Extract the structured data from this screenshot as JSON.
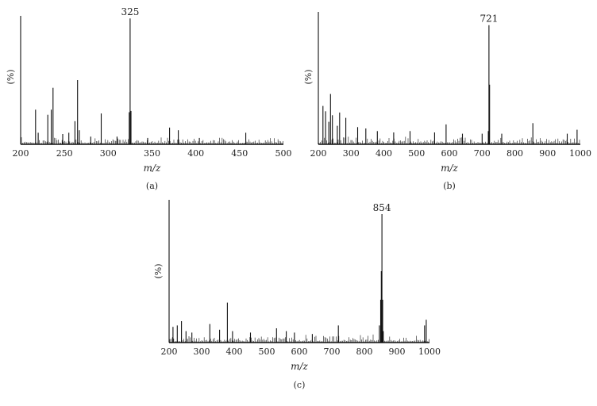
{
  "chart_data": [
    {
      "type": "bar",
      "panel_label": "(a)",
      "ylabel": "(%)",
      "xlabel": "m/z",
      "xlim": [
        200,
        500
      ],
      "ylim": [
        0,
        100
      ],
      "x_ticks": [
        200,
        250,
        300,
        350,
        400,
        450,
        500
      ],
      "peak_annotations": [
        {
          "text": "325",
          "x": 325
        }
      ],
      "x": [
        200,
        217,
        220,
        231,
        235,
        237,
        248,
        255,
        262,
        265,
        267,
        280,
        292,
        310,
        324,
        325,
        326,
        345,
        370,
        380,
        404,
        457
      ],
      "values": [
        100,
        27,
        9,
        23,
        27,
        44,
        8,
        9,
        18,
        50,
        11,
        6,
        24,
        6,
        25,
        98,
        26,
        5,
        13,
        11,
        5,
        9
      ]
    },
    {
      "type": "bar",
      "panel_label": "(b)",
      "ylabel": "(%)",
      "xlabel": "m/z",
      "xlim": [
        200,
        1000
      ],
      "ylim": [
        0,
        100
      ],
      "x_ticks": [
        200,
        300,
        400,
        500,
        600,
        700,
        800,
        900,
        1000
      ],
      "peak_annotations": [
        {
          "text": "721",
          "x": 721
        }
      ],
      "x": [
        200,
        214,
        222,
        232,
        237,
        243,
        258,
        265,
        284,
        320,
        345,
        380,
        430,
        480,
        555,
        590,
        640,
        700,
        719,
        721,
        723,
        760,
        855,
        960,
        990
      ],
      "values": [
        100,
        29,
        25,
        17,
        38,
        22,
        14,
        24,
        20,
        13,
        12,
        10,
        9,
        10,
        9,
        15,
        8,
        8,
        10,
        90,
        45,
        8,
        16,
        8,
        11
      ]
    },
    {
      "type": "bar",
      "panel_label": "(c)",
      "ylabel": "(%)",
      "xlabel": "m/z",
      "xlim": [
        200,
        1000
      ],
      "ylim": [
        0,
        100
      ],
      "x_ticks": [
        200,
        300,
        400,
        500,
        600,
        700,
        800,
        900,
        1000
      ],
      "peak_annotations": [
        {
          "text": "854",
          "x": 854
        }
      ],
      "x": [
        200,
        212,
        225,
        238,
        252,
        270,
        325,
        355,
        379,
        395,
        450,
        530,
        560,
        585,
        640,
        720,
        846,
        850,
        852,
        854,
        856,
        858,
        985,
        990
      ],
      "values": [
        100,
        11,
        12,
        15,
        8,
        7,
        13,
        9,
        28,
        8,
        7,
        10,
        8,
        7,
        6,
        12,
        12,
        30,
        50,
        90,
        30,
        8,
        12,
        16
      ]
    }
  ]
}
